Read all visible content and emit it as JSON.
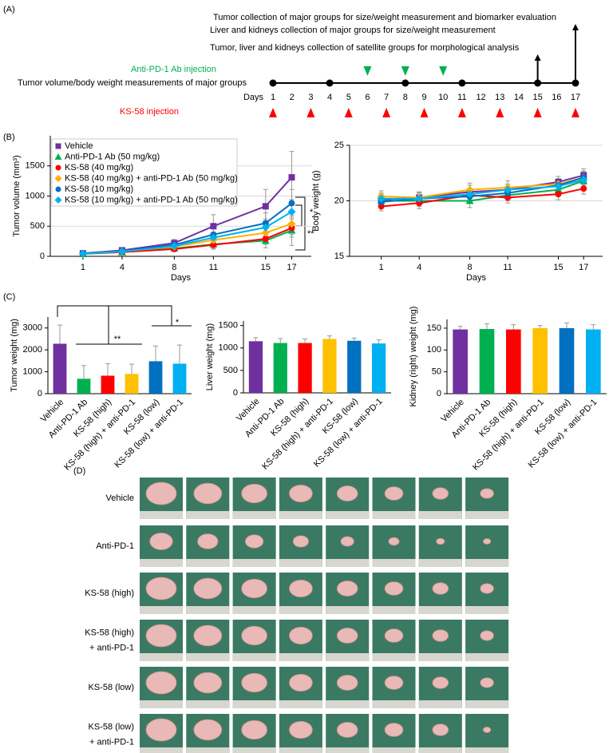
{
  "panels": [
    "(A)",
    "(B)",
    "(C)",
    "(D)"
  ],
  "timeline": {
    "major_labels": [
      "Tumor collection of major groups for size/weight measurement and biomarker evaluation",
      "Liver and kidneys collection of major groups for size/weight measurement"
    ],
    "major_day": 17,
    "satellite_label": "Tumor, liver and kidneys collection of satellite groups for morphological analysis",
    "satellite_day": 15,
    "anti_pd1_label": "Anti-PD-1 Ab injection",
    "anti_pd1_days": [
      6,
      8,
      10
    ],
    "measurement_label": "Tumor volume/body weight measurements of major groups",
    "measurement_days": [
      1,
      4,
      8,
      11,
      15,
      17
    ],
    "days_label": "Days",
    "days": [
      1,
      2,
      3,
      4,
      5,
      6,
      7,
      8,
      9,
      10,
      11,
      12,
      13,
      14,
      15,
      16,
      17
    ],
    "ks58_label": "KS-58 injection",
    "ks58_days": [
      1,
      3,
      5,
      7,
      9,
      11,
      13,
      15,
      17
    ]
  },
  "chart_data": [
    {
      "type": "line",
      "x_label": "Days",
      "y_label": "Tumor volume (mm³)",
      "x": [
        1,
        4,
        8,
        11,
        15,
        17
      ],
      "xlim": [
        -1.5,
        18.5
      ],
      "xticks": [
        1,
        4,
        8,
        11,
        15,
        17
      ],
      "ylim": [
        0,
        2000
      ],
      "yticks": [
        0,
        500,
        1000,
        1500
      ],
      "grid": true,
      "legend": "upper left",
      "annotations": [
        "*",
        "**"
      ],
      "series": [
        {
          "name": "Vehicle",
          "color": "#7030a0",
          "marker": "square",
          "values": [
            50,
            100,
            220,
            500,
            830,
            1310
          ],
          "errors": [
            20,
            30,
            60,
            190,
            280,
            430
          ]
        },
        {
          "name": "Anti-PD-1 Ab (50 mg/kg)",
          "color": "#00b050",
          "marker": "triangle",
          "values": [
            40,
            70,
            130,
            200,
            260,
            430
          ],
          "errors": [
            15,
            20,
            40,
            80,
            120,
            250
          ]
        },
        {
          "name": "KS-58 (40 mg/kg)",
          "color": "#ff0000",
          "marker": "circle",
          "values": [
            45,
            70,
            120,
            190,
            290,
            470
          ],
          "errors": [
            15,
            20,
            30,
            60,
            90,
            150
          ]
        },
        {
          "name": "KS-58 (40 mg/kg) + anti-PD-1 Ab (50 mg/kg)",
          "color": "#ffb000",
          "marker": "diamond",
          "values": [
            45,
            80,
            160,
            270,
            390,
            540
          ],
          "errors": [
            15,
            25,
            40,
            70,
            110,
            180
          ]
        },
        {
          "name": "KS-58 (10 mg/kg)",
          "color": "#0070c0",
          "marker": "circle",
          "values": [
            45,
            90,
            190,
            360,
            550,
            880
          ],
          "errors": [
            15,
            25,
            50,
            100,
            170,
            230
          ]
        },
        {
          "name": "KS-58 (10 mg/kg) + anti-PD-1 Ab (50 mg/kg)",
          "color": "#00b0f0",
          "marker": "diamond",
          "values": [
            45,
            80,
            170,
            310,
            480,
            740
          ],
          "errors": [
            15,
            25,
            45,
            90,
            140,
            200
          ]
        }
      ]
    },
    {
      "type": "line",
      "x_label": "Days",
      "y_label": "Body weight (g)",
      "x": [
        1,
        4,
        8,
        11,
        15,
        17
      ],
      "xlim": [
        -1.5,
        18.5
      ],
      "xticks": [
        1,
        4,
        8,
        11,
        15,
        17
      ],
      "ylim": [
        15,
        25
      ],
      "yticks": [
        15,
        20,
        25
      ],
      "grid": true,
      "series": [
        {
          "color": "#7030a0",
          "marker": "square",
          "values": [
            20.1,
            20.3,
            20.8,
            21.0,
            21.7,
            22.3
          ],
          "errors": [
            0.5,
            0.5,
            0.6,
            0.5,
            0.5,
            0.6
          ]
        },
        {
          "color": "#00b050",
          "marker": "triangle",
          "values": [
            20.0,
            20.0,
            20.0,
            20.5,
            21.0,
            21.8
          ],
          "errors": [
            0.5,
            0.5,
            0.6,
            0.5,
            0.5,
            0.5
          ]
        },
        {
          "color": "#ff0000",
          "marker": "circle",
          "values": [
            19.5,
            19.8,
            20.5,
            20.3,
            20.6,
            21.1
          ],
          "errors": [
            0.4,
            0.5,
            0.5,
            0.5,
            0.5,
            0.5
          ]
        },
        {
          "color": "#ffb000",
          "marker": "diamond",
          "values": [
            20.4,
            20.3,
            21.0,
            21.2,
            21.5,
            22.1
          ],
          "errors": [
            0.5,
            0.5,
            0.6,
            0.6,
            0.5,
            0.6
          ]
        },
        {
          "color": "#0070c0",
          "marker": "circle",
          "values": [
            19.9,
            20.2,
            20.4,
            20.7,
            21.4,
            22.1
          ],
          "errors": [
            0.5,
            0.5,
            0.5,
            0.5,
            0.5,
            0.5
          ]
        },
        {
          "color": "#00b0f0",
          "marker": "diamond",
          "values": [
            20.2,
            20.2,
            20.6,
            21.0,
            21.3,
            21.9
          ],
          "errors": [
            0.5,
            0.5,
            0.5,
            0.5,
            0.5,
            0.5
          ]
        }
      ]
    },
    {
      "type": "bar",
      "y_label": "Tumor weight (mg)",
      "categories": [
        "Vehicle",
        "Anti-PD-1 Ab",
        "KS-58 (high)",
        "KS-58 (high) + anti-PD-1",
        "KS-58 (low)",
        "KS-58 (low) + anti-PD-1"
      ],
      "colors": [
        "#7030a0",
        "#00b050",
        "#ff0000",
        "#ffc000",
        "#0070c0",
        "#00b0f0"
      ],
      "values": [
        2280,
        680,
        820,
        900,
        1480,
        1370
      ],
      "errors": [
        850,
        600,
        550,
        450,
        700,
        850
      ],
      "ylim": [
        0,
        3500
      ],
      "yticks": [
        0,
        1000,
        2000,
        3000
      ],
      "grid": false,
      "annotations": [
        "**",
        "*"
      ]
    },
    {
      "type": "bar",
      "y_label": "Liver weight (mg)",
      "categories": [
        "Vehicle",
        "Anti-PD-1 Ab",
        "KS-58 (high)",
        "KS-58 (high) + anti-PD-1",
        "KS-58 (low)",
        "KS-58 (low) + anti-PD-1"
      ],
      "colors": [
        "#7030a0",
        "#00b050",
        "#ff0000",
        "#ffc000",
        "#0070c0",
        "#00b0f0"
      ],
      "values": [
        1150,
        1110,
        1110,
        1200,
        1160,
        1100
      ],
      "errors": [
        80,
        100,
        90,
        70,
        60,
        80
      ],
      "ylim": [
        0,
        1600
      ],
      "yticks": [
        0,
        500,
        1000,
        1500
      ],
      "grid": false
    },
    {
      "type": "bar",
      "y_label": "Kidney (right) weight (mg)",
      "categories": [
        "Vehicle",
        "Anti-PD-1 Ab",
        "KS-58 (high)",
        "KS-58 (high) + anti-PD-1",
        "KS-58 (low)",
        "KS-58 (low) + anti-PD-1"
      ],
      "colors": [
        "#7030a0",
        "#00b050",
        "#ff0000",
        "#ffc000",
        "#0070c0",
        "#00b0f0"
      ],
      "values": [
        147,
        148,
        147,
        150,
        150,
        147
      ],
      "errors": [
        7,
        12,
        11,
        6,
        12,
        11
      ],
      "ylim": [
        0,
        170
      ],
      "yticks": [
        0,
        50,
        100,
        150
      ],
      "grid": false
    }
  ],
  "photos": {
    "rows": [
      [
        "Vehicle"
      ],
      [
        "Anti-PD-1"
      ],
      [
        "KS-58 (high)"
      ],
      [
        "KS-58 (high)",
        "+ anti-PD-1"
      ],
      [
        "KS-58 (low)"
      ],
      [
        "KS-58 (low)",
        "+ anti-PD-1"
      ]
    ]
  }
}
